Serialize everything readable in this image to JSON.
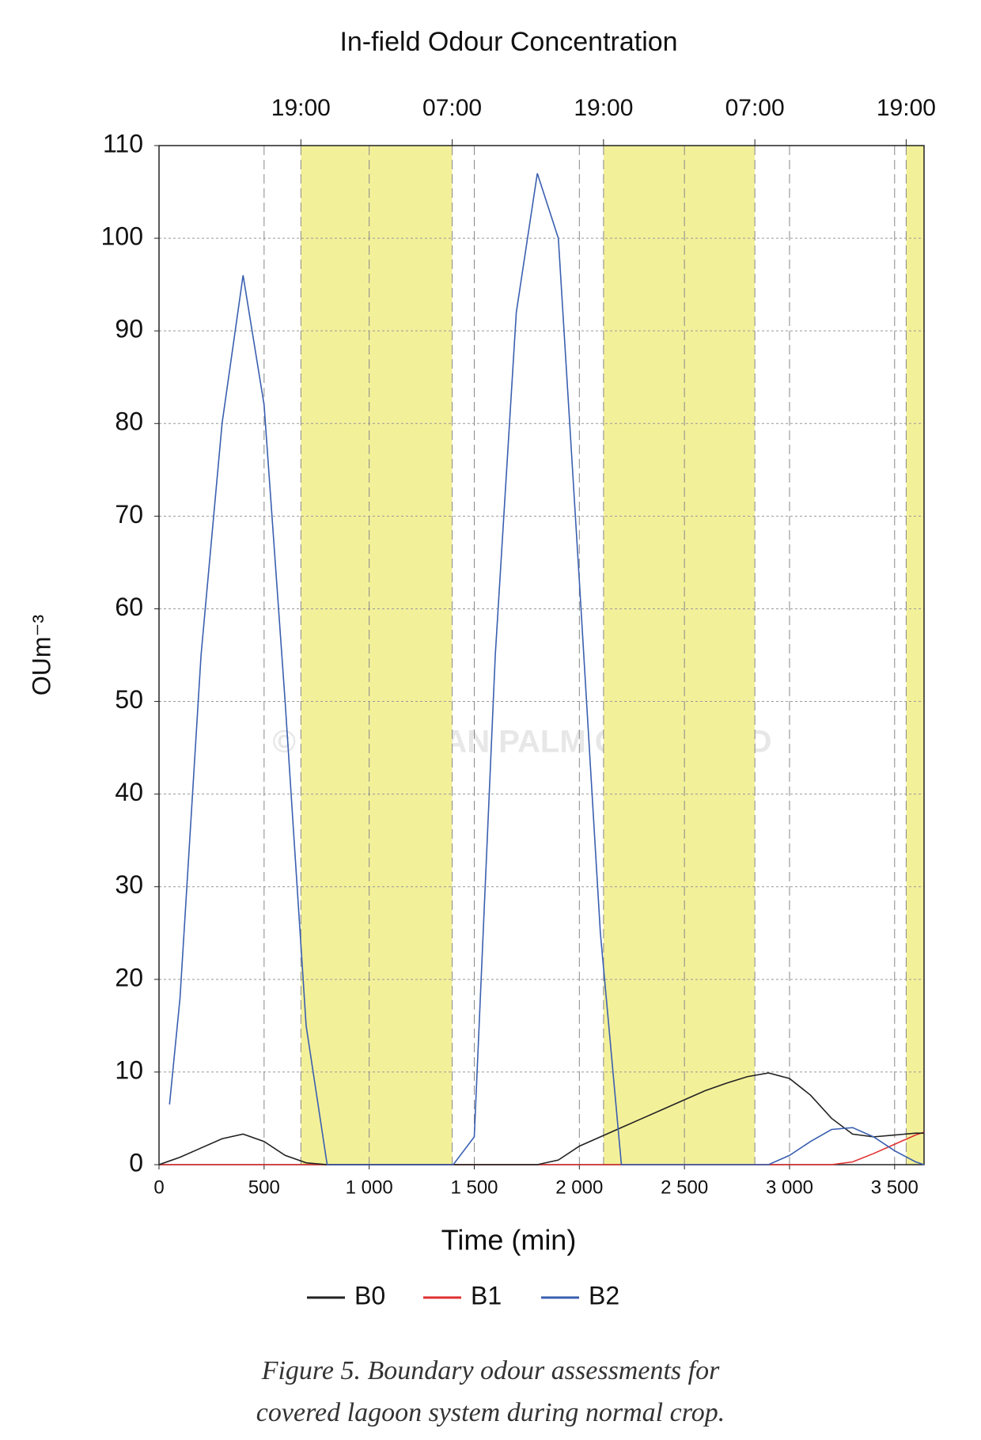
{
  "chart_data": {
    "type": "line",
    "title": "In-field Odour Concentration",
    "x_label": "Time (min)",
    "y_label": "OUm⁻³",
    "watermark": "© MALAYSIAN PALM OIL BOARD",
    "caption": [
      "Figure 5. Boundary odour assessments for",
      "covered lagoon system during normal crop."
    ],
    "x": [
      0,
      50,
      100,
      200,
      300,
      400,
      500,
      600,
      700,
      800,
      900,
      1000,
      1100,
      1200,
      1300,
      1400,
      1500,
      1600,
      1700,
      1800,
      1900,
      2000,
      2100,
      2200,
      2300,
      2400,
      2500,
      2600,
      2700,
      2800,
      2900,
      3000,
      3100,
      3200,
      3300,
      3400,
      3500,
      3600,
      3640
    ],
    "series": [
      {
        "name": "B0",
        "color": "#222222",
        "values": [
          0,
          0.4,
          0.8,
          1.8,
          2.8,
          3.3,
          2.5,
          1,
          0.2,
          0,
          0,
          0,
          0,
          0,
          0,
          0,
          0,
          0,
          0,
          0,
          0.5,
          2,
          3,
          4,
          5,
          6,
          7,
          8,
          8.8,
          9.5,
          9.9,
          9.3,
          7.5,
          5,
          3.3,
          3,
          3.2,
          3.4,
          3.4
        ]
      },
      {
        "name": "B1",
        "color": "#e03030",
        "values": [
          0,
          0,
          0,
          0,
          0,
          0,
          0,
          0,
          0,
          0,
          0,
          0,
          0,
          0,
          0,
          0,
          0,
          0,
          0,
          0,
          0,
          0,
          0,
          0,
          0,
          0,
          0,
          0,
          0,
          0,
          0,
          0,
          0,
          0,
          0.3,
          1.2,
          2.2,
          3.2,
          3.5
        ]
      },
      {
        "name": "B2",
        "color": "#3a5fb0",
        "values": [
          null,
          6.5,
          18,
          55,
          80,
          96,
          82,
          50,
          15,
          0,
          0,
          0,
          0,
          0,
          0,
          0,
          3,
          55,
          92,
          107,
          100,
          63,
          25,
          0,
          0,
          0,
          0,
          0,
          0,
          0,
          0,
          1,
          2.5,
          3.8,
          4,
          3,
          1.5,
          0.3,
          0
        ]
      }
    ],
    "xlim": [
      0,
      3640
    ],
    "ylim": [
      0,
      110
    ],
    "xticks": [
      0,
      500,
      {
        "value": 1000,
        "label": "1 000"
      },
      {
        "value": 1500,
        "label": "1 500"
      },
      {
        "value": 2000,
        "label": "2 000"
      },
      {
        "value": 2500,
        "label": "2 500"
      },
      {
        "value": 3000,
        "label": "3 000"
      },
      {
        "value": 3500,
        "label": "3 500"
      }
    ],
    "yticks": [
      0,
      10,
      20,
      30,
      40,
      50,
      60,
      70,
      80,
      90,
      100,
      110
    ],
    "x2ticks": [
      {
        "value": 675,
        "label": "19:00"
      },
      {
        "value": 1395,
        "label": "07:00"
      },
      {
        "value": 2115,
        "label": "19:00"
      },
      {
        "value": 2835,
        "label": "07:00"
      },
      {
        "value": 3555,
        "label": "19:00"
      }
    ],
    "shaded_regions": [
      [
        675,
        1395
      ],
      [
        2115,
        2835
      ],
      [
        3555,
        3640
      ]
    ],
    "shade_color": "#f3f09a",
    "grid": true
  }
}
